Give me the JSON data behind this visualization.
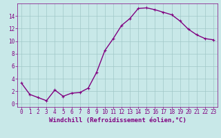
{
  "x": [
    0,
    1,
    2,
    3,
    4,
    5,
    6,
    7,
    8,
    9,
    10,
    11,
    12,
    13,
    14,
    15,
    16,
    17,
    18,
    19,
    20,
    21,
    22,
    23
  ],
  "y": [
    3.3,
    1.5,
    1.0,
    0.5,
    2.2,
    1.2,
    1.7,
    1.8,
    2.5,
    5.0,
    8.5,
    10.4,
    12.5,
    13.6,
    15.2,
    15.3,
    15.0,
    14.6,
    14.2,
    13.2,
    11.9,
    11.0,
    10.4,
    10.2
  ],
  "line_color": "#800080",
  "marker": "+",
  "marker_color": "#800080",
  "bg_color": "#c8e8e8",
  "plot_bg_color": "#c8e8e8",
  "grid_color": "#a0c8c8",
  "xlabel": "Windchill (Refroidissement éolien,°C)",
  "xlim": [
    -0.5,
    23.5
  ],
  "ylim": [
    -0.5,
    16.0
  ],
  "yticks": [
    0,
    2,
    4,
    6,
    8,
    10,
    12,
    14
  ],
  "xticks": [
    0,
    1,
    2,
    3,
    4,
    5,
    6,
    7,
    8,
    9,
    10,
    11,
    12,
    13,
    14,
    15,
    16,
    17,
    18,
    19,
    20,
    21,
    22,
    23
  ],
  "tick_color": "#800080",
  "tick_fontsize": 5.5,
  "xlabel_fontsize": 6.5,
  "xlabel_color": "#800080",
  "line_width": 1.0,
  "marker_size": 3.5
}
